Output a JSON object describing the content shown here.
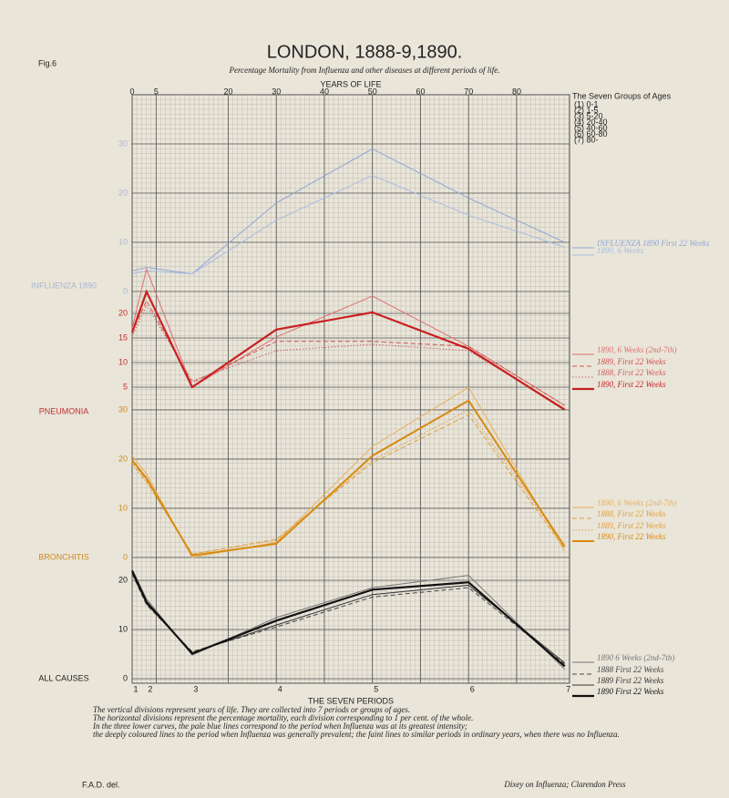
{
  "fig": "Fig.6",
  "title": "LONDON, 1888-9,1890.",
  "subtitle": "Percentage Mortality from Influenza and other diseases at different periods of life.",
  "x_axis": {
    "label": "YEARS OF LIFE",
    "xlim": [
      0,
      91
    ],
    "xticks": [
      0,
      5,
      20,
      30,
      40,
      50,
      60,
      70,
      80
    ]
  },
  "periods": {
    "label": "THE SEVEN PERIODS",
    "labels": [
      "1",
      "2",
      "3",
      "4",
      "5",
      "6",
      "7"
    ]
  },
  "age_groups": {
    "title": "The Seven Groups of Ages",
    "items": [
      "(1) 0-1",
      "(2) 1-5",
      "(3) 5-20",
      "(4) 20-40",
      "(5) 40-60",
      "(6) 60-80",
      "(7) 80-"
    ]
  },
  "chart_data": [
    {
      "type": "line",
      "title": "INFLUENZA 1890",
      "x": [
        0,
        3,
        12.5,
        30,
        50,
        70,
        90
      ],
      "ylim": [
        0,
        40
      ],
      "yticks": [
        0,
        10,
        20,
        30
      ],
      "tick_color": "#aab8d0",
      "grid": true,
      "series": [
        {
          "name": "INFLUENZA 1890 First 22 Weeks",
          "color": "#8fa6d6",
          "dash": "solid",
          "width": 1,
          "values": [
            4.2,
            4.9,
            3.6,
            18,
            29,
            19,
            10
          ]
        },
        {
          "name": "1890, 6 Weeks",
          "color": "#a9bce3",
          "dash": "solid",
          "width": 1,
          "values": [
            3.6,
            4.2,
            3.6,
            14.5,
            23.6,
            15.5,
            9
          ]
        }
      ]
    },
    {
      "type": "line",
      "title": "PNEUMONIA",
      "x": [
        0,
        3,
        12.5,
        30,
        50,
        70,
        90
      ],
      "ylim": [
        0,
        30
      ],
      "yticks": [
        5,
        10,
        15,
        20
      ],
      "tick_color": "#c03030",
      "grid": true,
      "series": [
        {
          "name": "1890, 6 Weeks (2nd-7th)",
          "color": "#e07070",
          "dash": "solid",
          "width": 1,
          "values": [
            17,
            29,
            5,
            15.2,
            23.5,
            13.3,
            1.3
          ]
        },
        {
          "name": "1889, First 22 Weeks",
          "color": "#d05050",
          "dash": "dashed",
          "width": 1,
          "values": [
            16.1,
            22.6,
            5.9,
            14.3,
            14.3,
            13.3,
            1.3
          ]
        },
        {
          "name": "1888, First 22 Weeks",
          "color": "#d06060",
          "dash": "dotted",
          "width": 1,
          "values": [
            15.2,
            21.7,
            6.3,
            12.4,
            13.7,
            12.4,
            0.7
          ]
        },
        {
          "name": "1890, First 22 Weeks",
          "color": "#c82020",
          "dash": "solid",
          "width": 2.2,
          "values": [
            16.1,
            24.4,
            5,
            16.7,
            20.2,
            12.8,
            0.4
          ]
        }
      ]
    },
    {
      "type": "line",
      "title": "BRONCHITIS",
      "x": [
        0,
        3,
        12.5,
        30,
        50,
        70,
        90
      ],
      "ylim": [
        0,
        35
      ],
      "yticks": [
        0,
        10,
        20,
        30
      ],
      "tick_color": "#d08a20",
      "grid": true,
      "series": [
        {
          "name": "1890, 6 Weeks (2nd-7th)",
          "color": "#e8b060",
          "dash": "solid",
          "width": 1,
          "values": [
            20.7,
            17,
            0,
            3.1,
            22.6,
            34.6,
            1.3
          ]
        },
        {
          "name": "1888, First 22 Weeks",
          "color": "#e0a040",
          "dash": "dashed",
          "width": 1,
          "values": [
            19.3,
            15.6,
            0.7,
            3.7,
            19.3,
            29,
            1.7
          ]
        },
        {
          "name": "1889, First 22 Weeks",
          "color": "#e0a040",
          "dash": "dotted",
          "width": 1,
          "values": [
            18.9,
            15.2,
            0.7,
            3.5,
            19.8,
            30,
            2.2
          ]
        },
        {
          "name": "1890, First 22 Weeks",
          "color": "#d88a10",
          "dash": "solid",
          "width": 2,
          "values": [
            19.8,
            16.1,
            0.4,
            2.8,
            20.7,
            31.9,
            2.2
          ]
        }
      ]
    },
    {
      "type": "line",
      "title": "ALL CAUSES",
      "x": [
        0,
        3,
        12.5,
        30,
        50,
        70,
        90
      ],
      "ylim": [
        0,
        24
      ],
      "yticks": [
        0,
        10,
        20
      ],
      "tick_color": "#222222",
      "grid": true,
      "series": [
        {
          "name": "1890 6 Weeks (2nd-7th)",
          "color": "#777777",
          "dash": "solid",
          "width": 1,
          "values": [
            22.3,
            16.2,
            4.8,
            12.4,
            18.5,
            21,
            1.9
          ]
        },
        {
          "name": "1888 First 22 Weeks",
          "color": "#444444",
          "dash": "dashed",
          "width": 1,
          "values": [
            21.3,
            15,
            5.5,
            10.5,
            16.6,
            18.5,
            2.9
          ]
        },
        {
          "name": "1889 First 22 Weeks",
          "color": "#333333",
          "dash": "solid",
          "width": 1,
          "values": [
            21.5,
            15.2,
            5.3,
            10.9,
            17.1,
            19,
            3.2
          ]
        },
        {
          "name": "1890 First 22 Weeks",
          "color": "#111111",
          "dash": "solid",
          "width": 2.2,
          "values": [
            21.9,
            15.6,
            5.1,
            11.8,
            18.1,
            19.6,
            2.5
          ]
        }
      ]
    }
  ],
  "notes": [
    "The vertical divisions represent years of life. They are collected into 7 periods or groups of ages.",
    "The horizontal divisions represent the percentage mortality, each division corresponding to 1 per cent. of the whole.",
    "In the three lower curves, the pale blue lines correspond to the period when Influenza was at its greatest intensity;",
    "the deeply coloured lines to the period when Influenza was generally prevalent; the faint lines to similar periods in ordinary years, when there was no Influenza."
  ],
  "credits": {
    "left": "F.A.D. del.",
    "right": "Dixey on Influenza; Clarendon Press"
  }
}
